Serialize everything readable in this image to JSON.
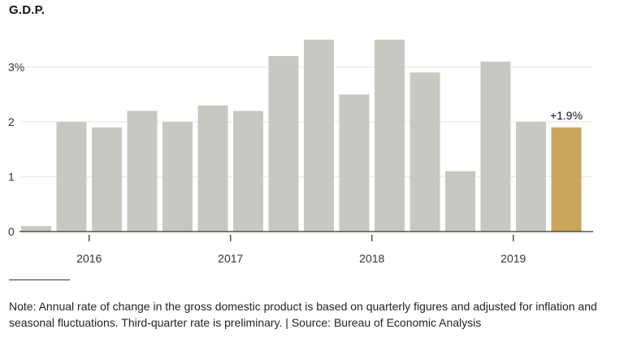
{
  "chart_data": {
    "type": "bar",
    "title": "G.D.P.",
    "xlabel": "",
    "ylabel": "",
    "ylim": [
      0,
      3.5
    ],
    "grid": true,
    "yticks": [
      {
        "value": 0,
        "label": "0"
      },
      {
        "value": 1,
        "label": "1"
      },
      {
        "value": 2,
        "label": "2"
      },
      {
        "value": 3,
        "label": "3%"
      }
    ],
    "xticks": [
      {
        "after_index": 1,
        "label": "2016"
      },
      {
        "after_index": 5,
        "label": "2017"
      },
      {
        "after_index": 9,
        "label": "2018"
      },
      {
        "after_index": 13,
        "label": "2019"
      }
    ],
    "values": [
      0.1,
      2.0,
      1.9,
      2.2,
      2.0,
      2.3,
      2.2,
      3.2,
      3.5,
      2.5,
      3.5,
      2.9,
      1.1,
      3.1,
      2.0,
      1.9
    ],
    "highlight_index": 15,
    "highlight_label": "+1.9%",
    "colors": {
      "bar": "#c8c8c3",
      "highlight": "#c9a55d",
      "grid": "#e6e6e6",
      "axis": "#333333"
    }
  },
  "note": "Note: Annual rate of change in the gross domestic product is based on quarterly figures and adjusted for inflation and seasonal fluctuations. Third-quarter rate is preliminary. | Source: Bureau of Economic Analysis"
}
